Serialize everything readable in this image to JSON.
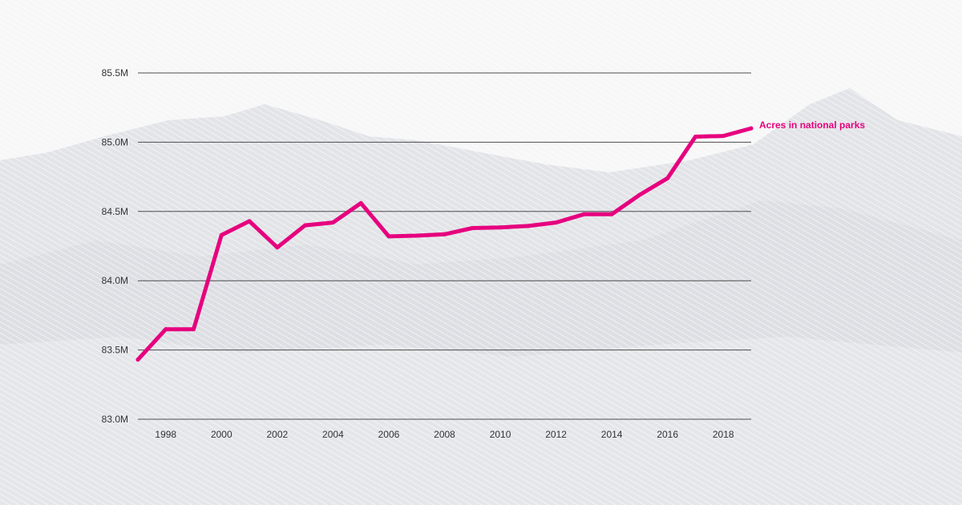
{
  "chart_data": {
    "type": "line",
    "x": [
      1997,
      1998,
      1999,
      2000,
      2001,
      2002,
      2003,
      2004,
      2005,
      2006,
      2007,
      2008,
      2009,
      2010,
      2011,
      2012,
      2013,
      2014,
      2015,
      2016,
      2017,
      2018,
      2019
    ],
    "series": [
      {
        "name": "Acres in national parks",
        "color": "#e6007e",
        "values": [
          83.43,
          83.65,
          83.65,
          84.33,
          84.43,
          84.24,
          84.4,
          84.42,
          84.56,
          84.32,
          84.325,
          84.335,
          84.38,
          84.385,
          84.395,
          84.42,
          84.48,
          84.48,
          84.62,
          84.74,
          85.04,
          85.045,
          85.1
        ]
      }
    ],
    "yticks": [
      83.0,
      83.5,
      84.0,
      84.5,
      85.0,
      85.5
    ],
    "ytick_labels": [
      "83.0M",
      "83.5M",
      "84.0M",
      "84.5M",
      "85.0M",
      "85.5M"
    ],
    "xticks": [
      1998,
      2000,
      2002,
      2004,
      2006,
      2008,
      2010,
      2012,
      2014,
      2016,
      2018
    ],
    "xtick_labels": [
      "1998",
      "2000",
      "2002",
      "2004",
      "2006",
      "2008",
      "2010",
      "2012",
      "2014",
      "2016",
      "2018"
    ],
    "xlim": [
      1997,
      2019
    ],
    "ylim": [
      83.0,
      85.5
    ],
    "grid": "horizontal",
    "legend": "end-of-line label"
  }
}
